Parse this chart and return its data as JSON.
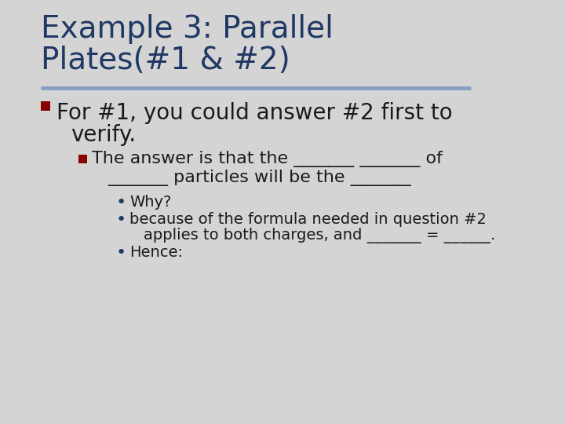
{
  "title_line1": "Example 3: Parallel",
  "title_line2": "Plates(#1 & #2)",
  "title_color": "#1F3864",
  "title_fontsize": 28,
  "background_color": "#D4D4D4",
  "divider_color": "#8A9EC4",
  "bullet1_square_color": "#8B0000",
  "bullet1_text_line1": "For #1, you could answer #2 first to",
  "bullet1_text_line2": "verify.",
  "bullet1_fontsize": 20,
  "bullet2_square_color": "#8B0000",
  "bullet2_text_line1": "The answer is that the _______ _______ of",
  "bullet2_text_line2": "_______ particles will be the _______",
  "bullet2_fontsize": 16,
  "sub_bullet1": "Why?",
  "sub_bullet2_line1": "because of the formula needed in question #2",
  "sub_bullet2_line2": "applies to both charges, and _______ = ______.",
  "sub_bullet3": "Hence:",
  "sub_bullet_fontsize": 14,
  "sub_bullet_dot_color": "#1F3864",
  "text_color": "#1A1A1A",
  "font_family": "DejaVu Sans"
}
